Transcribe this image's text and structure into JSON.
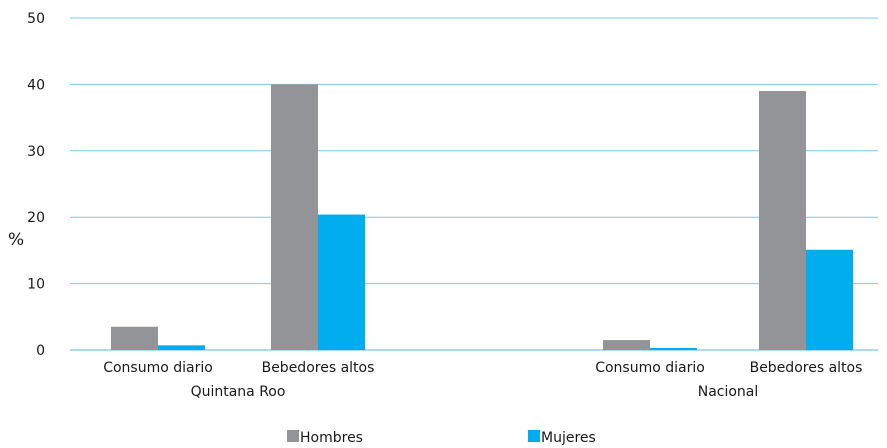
{
  "chart_data": {
    "type": "bar",
    "ylabel": "%",
    "ylim": [
      0,
      50
    ],
    "yticks": [
      0,
      10,
      20,
      30,
      40,
      50
    ],
    "grid": true,
    "legend_position": "bottom",
    "groups": [
      {
        "name": "Quintana Roo",
        "categories": [
          "Consumo diario",
          "Bebedores altos"
        ]
      },
      {
        "name": "Nacional",
        "categories": [
          "Consumo diario",
          "Bebedores altos"
        ]
      }
    ],
    "series": [
      {
        "name": "Hombres",
        "color": "#929497",
        "values": [
          3.5,
          40.0,
          1.5,
          39.0
        ]
      },
      {
        "name": "Mujeres",
        "color": "#00aeef",
        "values": [
          0.7,
          20.4,
          0.3,
          15.1
        ]
      }
    ]
  }
}
